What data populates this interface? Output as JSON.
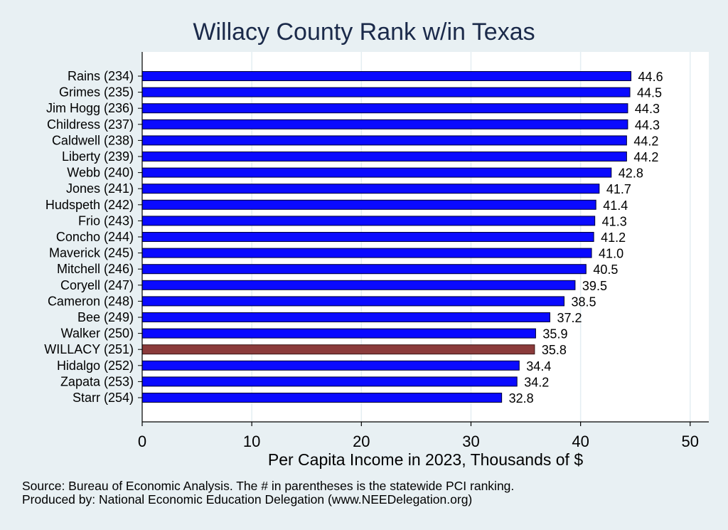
{
  "colors": {
    "background": "#e8f0f3",
    "plot_background": "#ffffff",
    "bar": "#0a0aff",
    "highlight_bar": "#8b3b3b",
    "grid": "#e4eef2",
    "title": "#1b2a4a"
  },
  "notes": {
    "source": "Source: Bureau of Economic Analysis. The # in parentheses is the statewide PCI ranking.",
    "producer": "Produced by: National Economic Education Delegation (www.NEEDelegation.org)"
  },
  "chart_data": {
    "type": "bar",
    "orientation": "horizontal",
    "title": "Willacy County Rank w/in Texas",
    "xlabel": "Per Capita Income in 2023, Thousands of $",
    "xlim": [
      0,
      51.7
    ],
    "xticks": [
      0,
      10,
      20,
      30,
      40,
      50
    ],
    "grid": true,
    "highlight": "WILLACY (251)",
    "categories": [
      "Rains (234)",
      "Grimes (235)",
      "Jim Hogg (236)",
      "Childress (237)",
      "Caldwell (238)",
      "Liberty (239)",
      "Webb (240)",
      "Jones (241)",
      "Hudspeth (242)",
      "Frio (243)",
      "Concho (244)",
      "Maverick (245)",
      "Mitchell (246)",
      "Coryell (247)",
      "Cameron (248)",
      "Bee (249)",
      "Walker (250)",
      "WILLACY (251)",
      "Hidalgo (252)",
      "Zapata (253)",
      "Starr (254)"
    ],
    "values": [
      44.6,
      44.5,
      44.3,
      44.3,
      44.2,
      44.2,
      42.8,
      41.7,
      41.4,
      41.3,
      41.2,
      41.0,
      40.5,
      39.5,
      38.5,
      37.2,
      35.9,
      35.8,
      34.4,
      34.2,
      32.8
    ],
    "value_labels": [
      "44.6",
      "44.5",
      "44.3",
      "44.3",
      "44.2",
      "44.2",
      "42.8",
      "41.7",
      "41.4",
      "41.3",
      "41.2",
      "41.0",
      "40.5",
      "39.5",
      "38.5",
      "37.2",
      "35.9",
      "35.8",
      "34.4",
      "34.2",
      "32.8"
    ]
  }
}
